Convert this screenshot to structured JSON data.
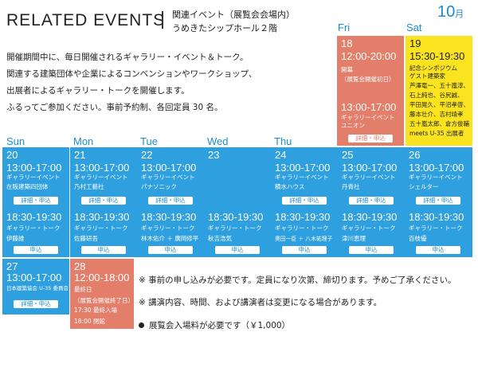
{
  "header": {
    "title": "RELATED EVENTS",
    "subtitle1": "関連イベント（展覧会会場内）",
    "subtitle2": "うめきたシップホール２階",
    "month_num": "10",
    "month_unit": "月"
  },
  "intro": [
    "開催期間中に、毎日開催されるギャラリー・イベント＆トーク。",
    "関連する建築団体や企業によるコンベンションやワークショップ、",
    "出展者によるギャラリー・トークを開催します。",
    "ふるってご参加ください。事前予約制、各回定員 30 名。"
  ],
  "days": {
    "fri": "Fri",
    "sat": "Sat",
    "sun": "Sun",
    "mon": "Mon",
    "tue": "Tue",
    "wed": "Wed",
    "thu": "Thu"
  },
  "buttons": {
    "detail": "詳細・申込",
    "apply": "申込"
  },
  "events": {
    "d18": {
      "date": "18",
      "time1": "12:00-20:00",
      "l1": "開幕",
      "l2": "（展覧会開催初日）",
      "time2": "13:00-17:00",
      "l3": "ギャラリーイベント",
      "l4": "ユニオン"
    },
    "d19": {
      "date": "19",
      "time1": "15:30-19:30",
      "lines": [
        "記念シンポジウム",
        "ゲスト建築家",
        "芦澤竜一、五十嵐淳、",
        "石上純也、谷尻誠、",
        "平田晃久、平沼孝啓、",
        "藤本壮介、吉村靖孝",
        "五十嵐太郎、倉方俊輔",
        "meets U-35 出展者"
      ]
    },
    "d20": {
      "date": "20",
      "time1": "13:00-17:00",
      "l1": "ギャラリーイベント",
      "l2": "在阪建築四団体",
      "time2": "18:30-19:30",
      "l3": "ギャラリー・トーク",
      "l4": "伊藤維"
    },
    "d21": {
      "date": "21",
      "time1": "13:00-17:00",
      "l1": "ギャラリーイベント",
      "l2": "乃村工藝社",
      "time2": "18:30-19:30",
      "l3": "ギャラリー・トーク",
      "l4": "佐藤研吾"
    },
    "d22": {
      "date": "22",
      "time1": "13:00-17:00",
      "l1": "ギャラリーイベント",
      "l2": "パナソニック",
      "time2": "18:30-19:30",
      "l3": "ギャラリー・トーク",
      "l4": "林木佑介 ＋ 廣岡修平"
    },
    "d23": {
      "date": "23",
      "time2": "18:30-19:30",
      "l3": "ギャラリー・トーク",
      "l4": "秋吉浩気"
    },
    "d24": {
      "date": "24",
      "time1": "13:00-17:00",
      "l1": "ギャラリーイベント",
      "l2": "積水ハウス",
      "time2": "18:30-19:30",
      "l3": "ギャラリー・トーク",
      "l4": "奧田一臣 ＋ 八木祐理子"
    },
    "d25": {
      "date": "25",
      "time1": "13:00-17:00",
      "l1": "ギャラリーイベント",
      "l2": "丹青社",
      "time2": "18:30-19:30",
      "l3": "ギャラリー・トーク",
      "l4": "津川恵理"
    },
    "d26": {
      "date": "26",
      "time1": "13:00-17:00",
      "l1": "ギャラリーイベント",
      "l2": "シェルター",
      "time2": "18:30-19:30",
      "l3": "ギャラリー・トーク",
      "l4": "百枝優"
    },
    "d27": {
      "date": "27",
      "time1": "13:00-17:00",
      "l1": "日本建築協会 U-35 委員会"
    },
    "d28": {
      "date": "28",
      "time1": "12:00-18:00",
      "l1": "最終日",
      "l2": "（展覧会開催終了日）",
      "l3": "17:30 最終入場",
      "l4": "18:00 閉館"
    }
  },
  "notes": [
    "※ 事前の申し込みが必要です。定員になり次第、締切ります。予めご了承ください。",
    "※ 講演内容、時間、および講演者は変更になる場合があります。",
    "展覧会入場料が必要です（￥1,000）"
  ]
}
